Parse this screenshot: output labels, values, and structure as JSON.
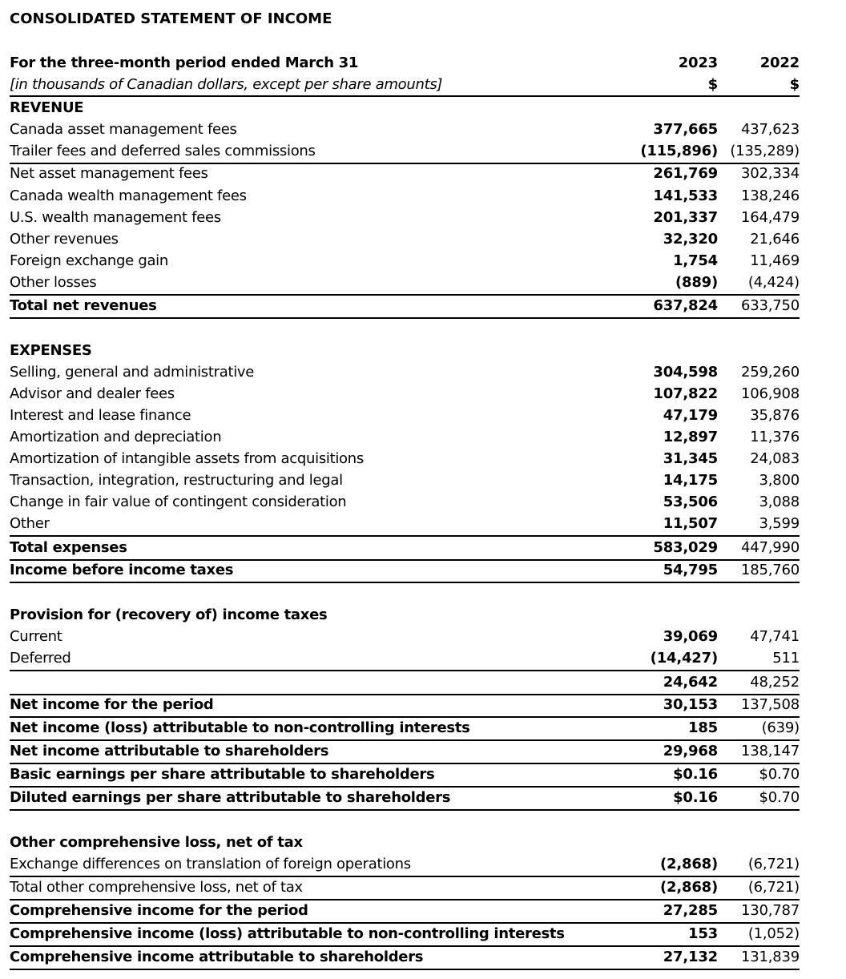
{
  "title": "CONSOLIDATED STATEMENT OF INCOME",
  "header": {
    "period": "For the three-month period ended March 31",
    "units": "[in thousands of Canadian dollars, except per share amounts]",
    "col_2023": "2023",
    "col_2022": "2022",
    "currency_2023": "$",
    "currency_2022": "$"
  },
  "rows": [
    {
      "label": "REVENUE",
      "y2023": "",
      "y2022": "",
      "bold": true
    },
    {
      "label": "Canada asset management fees",
      "y2023": "377,665",
      "y2022": "437,623"
    },
    {
      "label": "Trailer fees and deferred sales commissions",
      "y2023": "(115,896)",
      "y2022": "(135,289)",
      "underline": true
    },
    {
      "label": "Net asset management fees",
      "y2023": "261,769",
      "y2022": "302,334"
    },
    {
      "label": "Canada wealth management fees",
      "y2023": "141,533",
      "y2022": "138,246"
    },
    {
      "label": "U.S. wealth management fees",
      "y2023": "201,337",
      "y2022": "164,479"
    },
    {
      "label": "Other revenues",
      "y2023": "32,320",
      "y2022": "21,646"
    },
    {
      "label": "Foreign exchange gain",
      "y2023": "1,754",
      "y2022": "11,469"
    },
    {
      "label": "Other losses",
      "y2023": "(889)",
      "y2022": "(4,424)",
      "underline": true
    },
    {
      "label": "Total net revenues",
      "y2023": "637,824",
      "y2022": "633,750",
      "bold": true,
      "underline": true
    },
    {
      "label": "EXPENSES",
      "y2023": "",
      "y2022": "",
      "bold": true
    },
    {
      "label": "Selling, general and administrative",
      "y2023": "304,598",
      "y2022": "259,260"
    },
    {
      "label": "Advisor and dealer fees",
      "y2023": "107,822",
      "y2022": "106,908"
    },
    {
      "label": "Interest and lease finance",
      "y2023": "47,179",
      "y2022": "35,876"
    },
    {
      "label": "Amortization and depreciation",
      "y2023": "12,897",
      "y2022": "11,376"
    },
    {
      "label": "Amortization of intangible assets from acquisitions",
      "y2023": "31,345",
      "y2022": "24,083"
    },
    {
      "label": "Transaction, integration, restructuring and legal",
      "y2023": "14,175",
      "y2022": "3,800"
    },
    {
      "label": "Change in fair value of contingent consideration",
      "y2023": "53,506",
      "y2022": "3,088"
    },
    {
      "label": "Other",
      "y2023": "11,507",
      "y2022": "3,599",
      "underline": true
    },
    {
      "label": "Total expenses",
      "y2023": "583,029",
      "y2022": "447,990",
      "bold": true,
      "underline": true
    },
    {
      "label": "Income before income taxes",
      "y2023": "54,795",
      "y2022": "185,760",
      "bold": true,
      "underline": true
    },
    {
      "label": "Provision for (recovery of) income taxes",
      "y2023": "",
      "y2022": "",
      "bold": true
    },
    {
      "label": "Current",
      "y2023": "39,069",
      "y2022": "47,741"
    },
    {
      "label": "Deferred",
      "y2023": "(14,427)",
      "y2022": "511",
      "underline": true
    },
    {
      "label": "",
      "y2023": "24,642",
      "y2022": "48,252",
      "underline": true
    },
    {
      "label": "Net income for the period",
      "y2023": "30,153",
      "y2022": "137,508",
      "bold": true,
      "underline": true
    },
    {
      "label": "Net income (loss) attributable to non-controlling interests",
      "y2023": "185",
      "y2022": "(639)",
      "bold": true,
      "underline": true
    },
    {
      "label": "Net income attributable to shareholders",
      "y2023": "29,968",
      "y2022": "138,147",
      "bold": true,
      "underline": true
    },
    {
      "label": "Basic earnings per share attributable to shareholders",
      "y2023": "$0.16",
      "y2022": "$0.70",
      "bold": true,
      "underline": true
    },
    {
      "label": "Diluted earnings per share attributable to shareholders",
      "y2023": "$0.16",
      "y2022": "$0.70",
      "bold": true,
      "underline": true
    },
    {
      "label": "Other comprehensive loss, net of tax",
      "y2023": "",
      "y2022": "",
      "bold": true
    },
    {
      "label": "Exchange differences on translation of foreign operations",
      "y2023": "(2,868)",
      "y2022": "(6,721)",
      "underline": true
    },
    {
      "label": "Total other comprehensive loss, net of tax",
      "y2023": "(2,868)",
      "y2022": "(6,721)",
      "underline": true
    },
    {
      "label": "Comprehensive income for the period",
      "y2023": "27,285",
      "y2022": "130,787",
      "bold": true,
      "underline": true
    },
    {
      "label": "Comprehensive income (loss) attributable to non-controlling interests",
      "y2023": "153",
      "y2022": "(1,052)",
      "bold": true,
      "underline": true
    },
    {
      "label": "Comprehensive income attributable to shareholders",
      "y2023": "27,132",
      "y2022": "131,839",
      "bold": true,
      "underline": true
    }
  ]
}
